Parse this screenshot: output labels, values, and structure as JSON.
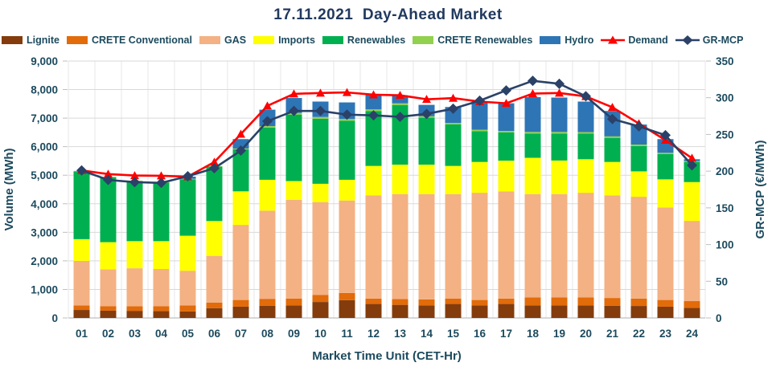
{
  "title": "17.11.2021  Day-Ahead Market",
  "chart_data": {
    "type": "bar",
    "stacked": true,
    "grid": true,
    "legend_position": "top",
    "title": "17.11.2021  Day-Ahead Market",
    "xlabel": "Market Time Unit (CET-Hr)",
    "ylabel_left": "Volume (MWh)",
    "ylabel_right": "GR-MCP (€/MWh)",
    "ylim_left": [
      0,
      9000
    ],
    "ylim_right": [
      0,
      350
    ],
    "yticks_left": [
      "0",
      "1,000",
      "2,000",
      "3,000",
      "4,000",
      "5,000",
      "6,000",
      "7,000",
      "8,000",
      "9,000"
    ],
    "yticks_right": [
      "0",
      "50",
      "100",
      "150",
      "200",
      "250",
      "300",
      "350"
    ],
    "categories": [
      "01",
      "02",
      "03",
      "04",
      "05",
      "06",
      "07",
      "08",
      "09",
      "10",
      "11",
      "12",
      "13",
      "14",
      "15",
      "16",
      "17",
      "18",
      "19",
      "20",
      "21",
      "22",
      "23",
      "24"
    ],
    "series": [
      {
        "name": "Lignite",
        "color": "#843C0C",
        "axis": "left",
        "values": [
          280,
          255,
          250,
          245,
          230,
          345,
          395,
          430,
          440,
          560,
          625,
          490,
          460,
          440,
          490,
          440,
          490,
          440,
          440,
          440,
          430,
          420,
          395,
          350
        ]
      },
      {
        "name": "CRETE Conventional",
        "color": "#E26B0A",
        "axis": "left",
        "values": [
          160,
          160,
          160,
          170,
          210,
          190,
          235,
          240,
          235,
          250,
          250,
          190,
          200,
          210,
          185,
          190,
          190,
          280,
          280,
          280,
          270,
          260,
          235,
          240
        ]
      },
      {
        "name": "GAS",
        "color": "#F4B183",
        "axis": "left",
        "values": [
          1560,
          1290,
          1330,
          1300,
          1215,
          1640,
          2630,
          3090,
          3460,
          3250,
          3240,
          3615,
          3680,
          3690,
          3665,
          3755,
          3750,
          3620,
          3620,
          3665,
          3590,
          3565,
          3240,
          2810
        ]
      },
      {
        "name": "Imports",
        "color": "#FFFF00",
        "axis": "left",
        "values": [
          760,
          950,
          950,
          975,
          1225,
          1220,
          1175,
          1080,
          660,
          640,
          725,
          1030,
          1030,
          1030,
          985,
          1080,
          1080,
          1270,
          1175,
          1175,
          1175,
          890,
          985,
          1360
        ]
      },
      {
        "name": "Renewables",
        "color": "#00B050",
        "axis": "left",
        "values": [
          2360,
          2270,
          2100,
          2050,
          1975,
          1905,
          1470,
          1830,
          2330,
          2280,
          2070,
          1925,
          2090,
          1645,
          1455,
          1080,
          990,
          845,
          940,
          895,
          845,
          890,
          890,
          705
        ]
      },
      {
        "name": "CRETE Renewables",
        "color": "#92D050",
        "axis": "left",
        "values": [
          20,
          20,
          20,
          20,
          20,
          20,
          30,
          50,
          60,
          60,
          60,
          55,
          60,
          50,
          50,
          50,
          50,
          60,
          60,
          55,
          50,
          50,
          40,
          30
        ]
      },
      {
        "name": "Hydro",
        "color": "#2E75B6",
        "axis": "left",
        "values": [
          10,
          0,
          0,
          0,
          75,
          0,
          330,
          575,
          520,
          540,
          580,
          510,
          280,
          400,
          560,
          985,
          970,
          1220,
          1205,
          1070,
          890,
          700,
          480,
          65
        ]
      }
    ],
    "line_series": [
      {
        "name": "Demand",
        "color": "#FF0000",
        "marker": "triangle",
        "axis": "left",
        "values": [
          5170,
          5040,
          4990,
          4980,
          4950,
          5460,
          6440,
          7430,
          7850,
          7880,
          7900,
          7820,
          7800,
          7660,
          7700,
          7580,
          7520,
          7860,
          7880,
          7760,
          7380,
          6810,
          6230,
          5600
        ]
      },
      {
        "name": "GR-MCP",
        "color": "#2B4168",
        "marker": "diamond",
        "axis": "right",
        "values": [
          201,
          188,
          185,
          184,
          193,
          204,
          228,
          268,
          282,
          282,
          277,
          276,
          274,
          278,
          285,
          296,
          310,
          323,
          319,
          302,
          271,
          261,
          249,
          208
        ]
      }
    ]
  },
  "style": {
    "text_color": "#1C4A5E",
    "title_color": "#21395E",
    "gridline_color": "#D9D9D9",
    "vgrid_color": "#E7E7E7",
    "axisline_color": "#BFBFBF"
  }
}
